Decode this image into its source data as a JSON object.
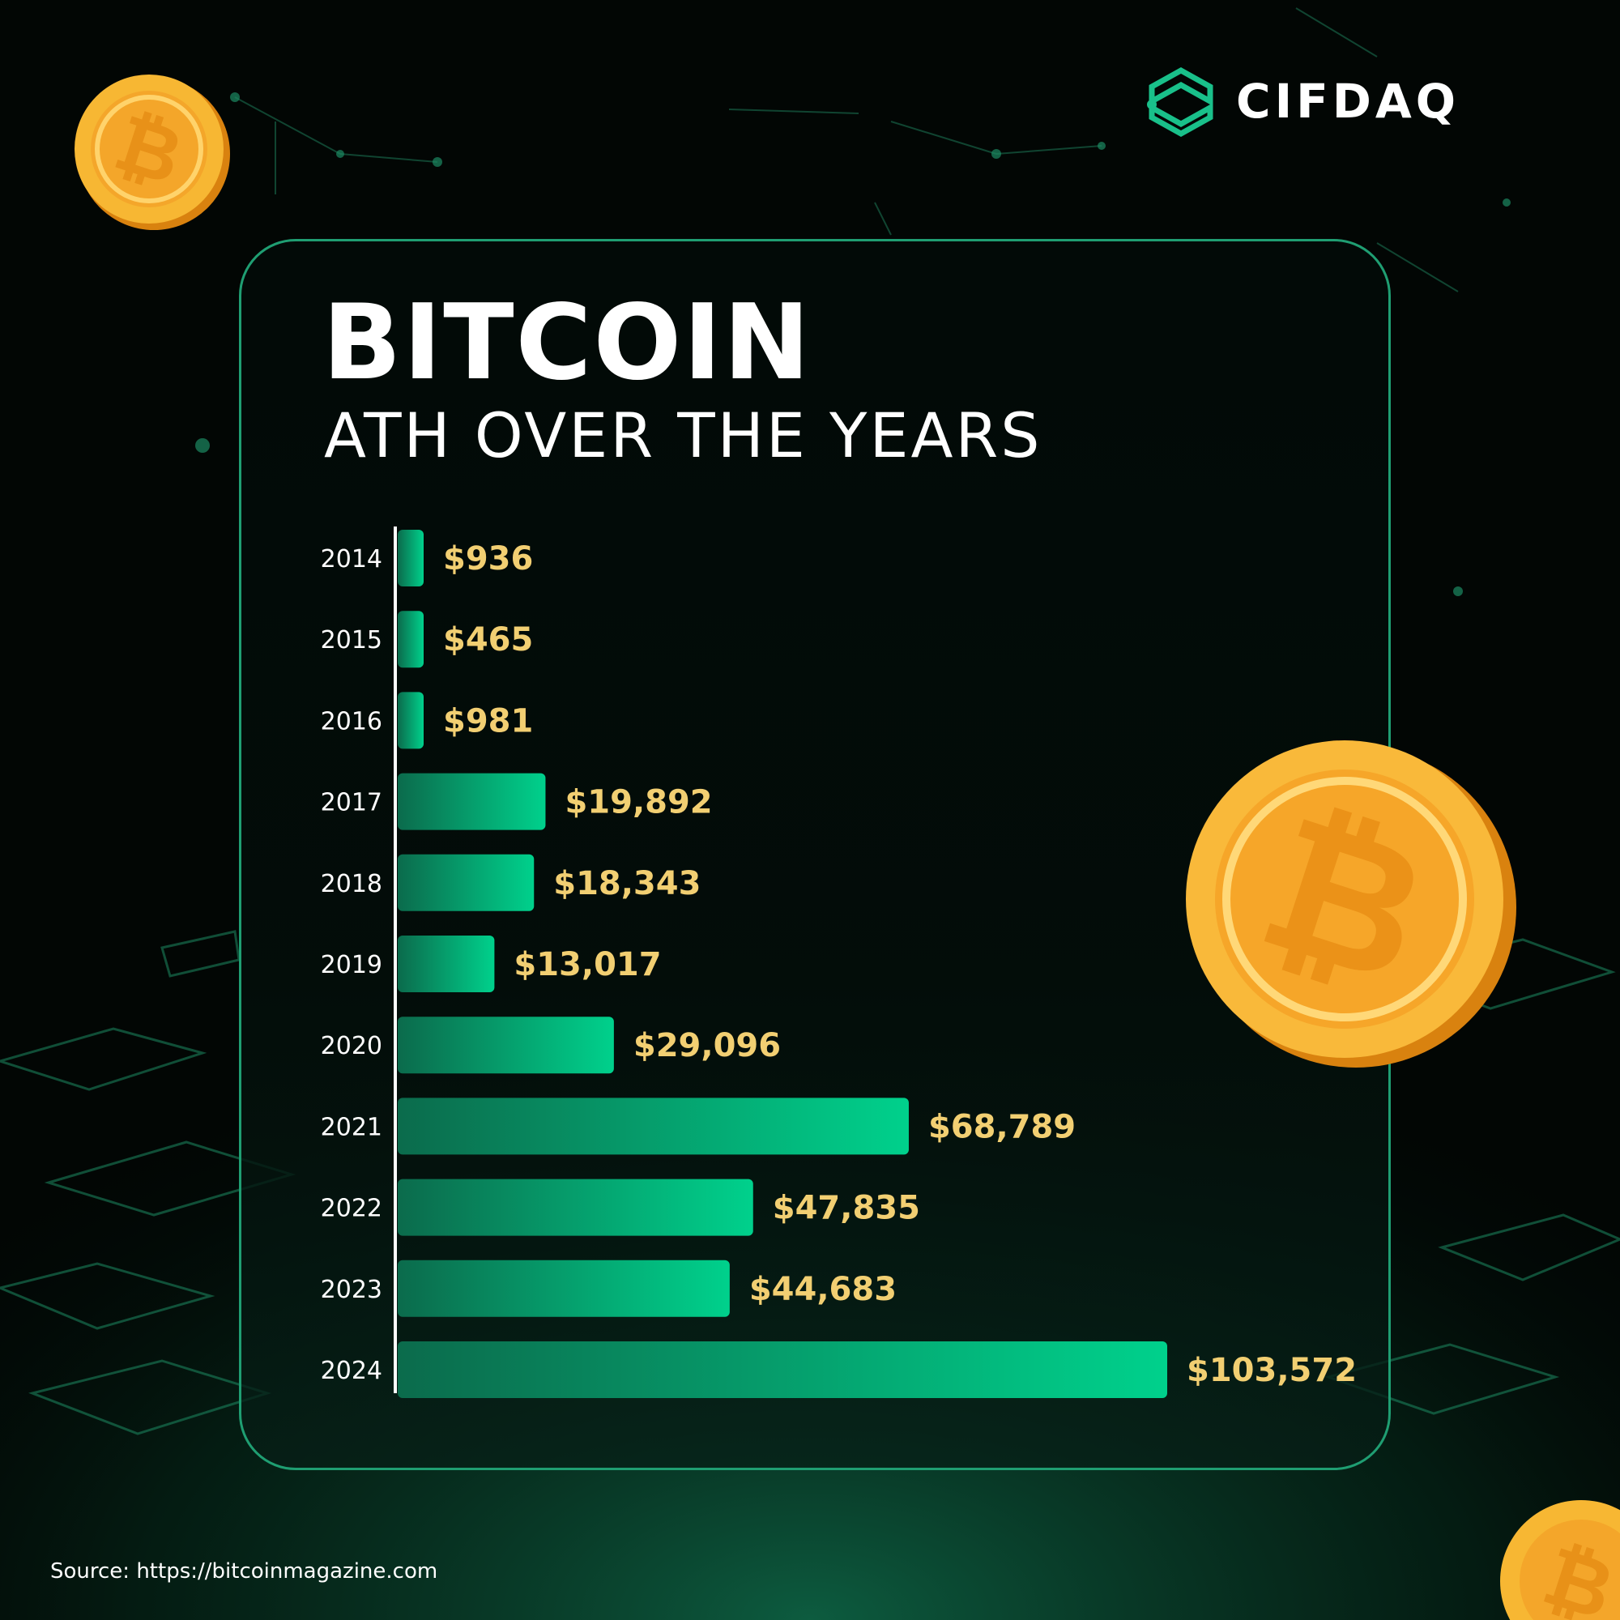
{
  "brand": {
    "name": "CIFDAQ"
  },
  "heading": {
    "title": "BITCOIN",
    "subtitle": "ATH OVER THE YEARS"
  },
  "source": "Source: https://bitcoinmagazine.com",
  "icons": [
    "bitcoin-coin-icon",
    "cifdaq-logo-icon"
  ],
  "colors": {
    "bar_start": "#0b6b4c",
    "bar_end": "#00d18c",
    "value_label": "#f2cf72",
    "accent": "#1f9e72"
  },
  "chart_data": {
    "type": "bar",
    "orientation": "horizontal",
    "title": "BITCOIN",
    "subtitle": "ATH OVER THE YEARS",
    "xlabel": "",
    "ylabel": "",
    "grid": false,
    "categories": [
      "2014",
      "2015",
      "2016",
      "2017",
      "2018",
      "2019",
      "2020",
      "2021",
      "2022",
      "2023",
      "2024"
    ],
    "values": [
      936,
      465,
      981,
      19892,
      18343,
      13017,
      29096,
      68789,
      47835,
      44683,
      103572
    ],
    "labels": [
      "$936",
      "$465",
      "$981",
      "$19,892",
      "$18,343",
      "$13,017",
      "$29,096",
      "$68,789",
      "$47,835",
      "$44,683",
      "$103,572"
    ]
  }
}
